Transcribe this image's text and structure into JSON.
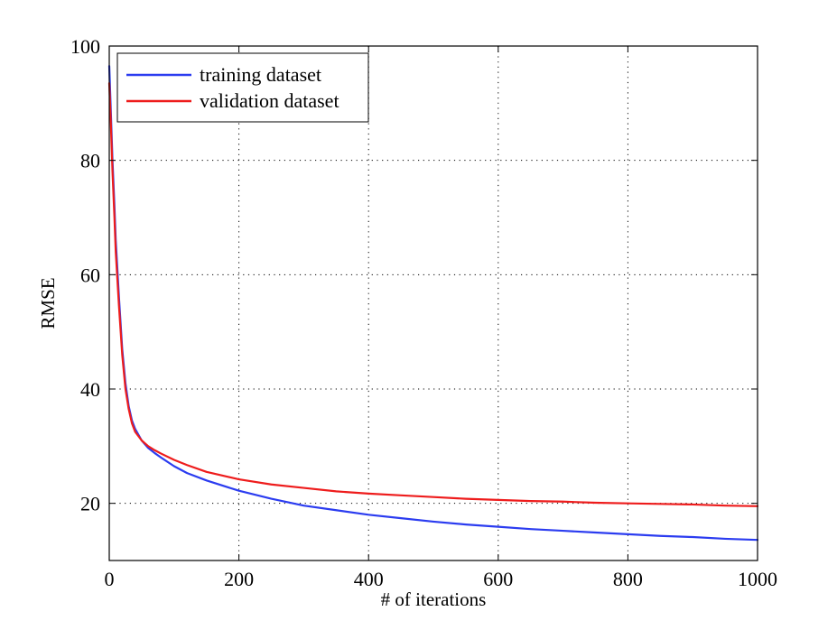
{
  "chart_data": {
    "type": "line",
    "title": "",
    "xlabel": "# of iterations",
    "ylabel": "RMSE",
    "xlim": [
      0,
      1000
    ],
    "ylim": [
      10,
      100
    ],
    "grid": true,
    "legend_position": "top-left",
    "x_ticks": [
      0,
      200,
      400,
      600,
      800,
      1000
    ],
    "y_ticks": [
      20,
      40,
      60,
      80,
      100
    ],
    "series": [
      {
        "name": "training dataset",
        "color": "#2b3cf0",
        "x": [
          0,
          2,
          5,
          8,
          10,
          15,
          20,
          25,
          30,
          35,
          40,
          50,
          60,
          70,
          80,
          100,
          120,
          150,
          200,
          250,
          300,
          350,
          400,
          450,
          500,
          550,
          600,
          650,
          700,
          750,
          800,
          850,
          900,
          950,
          1000
        ],
        "y": [
          96.5,
          90,
          80,
          72,
          66,
          56,
          47,
          41,
          37,
          34.5,
          33,
          31,
          29.7,
          28.8,
          28,
          26.5,
          25.3,
          24,
          22.2,
          20.8,
          19.6,
          18.8,
          18,
          17.4,
          16.8,
          16.3,
          15.9,
          15.5,
          15.2,
          14.9,
          14.6,
          14.3,
          14.1,
          13.8,
          13.6
        ]
      },
      {
        "name": "validation dataset",
        "color": "#ee1c1c",
        "x": [
          0,
          2,
          5,
          8,
          10,
          15,
          20,
          25,
          30,
          35,
          40,
          50,
          60,
          70,
          80,
          100,
          120,
          150,
          200,
          250,
          300,
          350,
          400,
          450,
          500,
          550,
          600,
          650,
          700,
          750,
          800,
          850,
          900,
          950,
          1000
        ],
        "y": [
          93.5,
          88,
          78,
          70,
          64,
          54.5,
          46,
          40,
          36.5,
          34,
          32.5,
          31,
          30,
          29.3,
          28.7,
          27.6,
          26.7,
          25.5,
          24.2,
          23.3,
          22.7,
          22.1,
          21.7,
          21.4,
          21.1,
          20.8,
          20.6,
          20.4,
          20.3,
          20.1,
          20,
          19.9,
          19.8,
          19.6,
          19.5
        ]
      }
    ]
  }
}
